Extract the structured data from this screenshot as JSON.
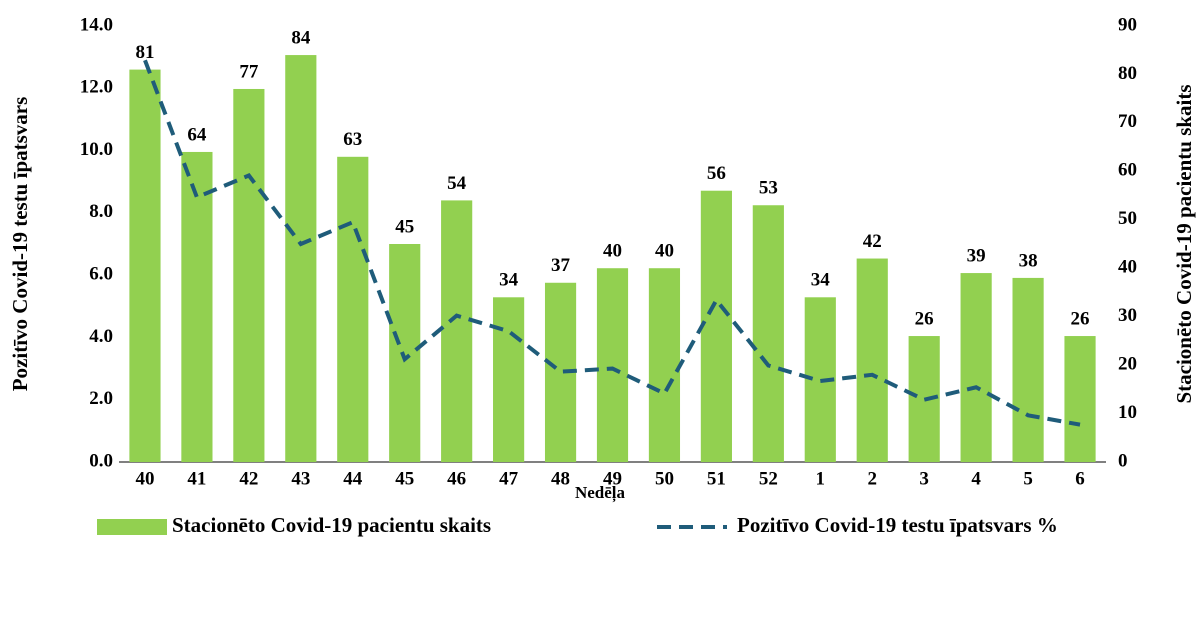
{
  "chart_data": {
    "type": "bar_line",
    "x_label": "Nedēļa",
    "y_label": "Pozitīvo Covid-19 testu īpatsvars",
    "y2_label": "Stacionēto Covid-19 pacientu skaits",
    "categories": [
      "40",
      "41",
      "42",
      "43",
      "44",
      "45",
      "46",
      "47",
      "48",
      "49",
      "50",
      "51",
      "52",
      "1",
      "2",
      "3",
      "4",
      "5",
      "6"
    ],
    "series": [
      {
        "name": "Stacionēto Covid-19 pacientu skaits",
        "type": "bar",
        "axis": "y2",
        "color": "#92d050",
        "values": [
          81,
          64,
          77,
          84,
          63,
          45,
          54,
          34,
          37,
          40,
          40,
          56,
          53,
          34,
          42,
          26,
          39,
          38,
          26
        ]
      },
      {
        "name": "Pozitīvo Covid-19 testu īpatsvars %",
        "type": "line",
        "axis": "y",
        "color": "#1f5c7a",
        "values": [
          12.9,
          8.5,
          9.2,
          7.0,
          7.7,
          3.3,
          4.7,
          4.2,
          2.9,
          3.0,
          2.2,
          5.2,
          3.1,
          2.6,
          2.8,
          2.0,
          2.4,
          1.5,
          1.2
        ]
      }
    ],
    "ylim": [
      0,
      14
    ],
    "yticks": [
      {
        "value": 0,
        "label": "0.0"
      },
      {
        "value": 2,
        "label": "2.0"
      },
      {
        "value": 4,
        "label": "4.0"
      },
      {
        "value": 6,
        "label": "6.0"
      },
      {
        "value": 8,
        "label": "8.0"
      },
      {
        "value": 10,
        "label": "10.0"
      },
      {
        "value": 12,
        "label": "12.0"
      },
      {
        "value": 14,
        "label": "14.0"
      }
    ],
    "y2lim": [
      0,
      90
    ],
    "y2ticks": [
      0,
      10,
      20,
      30,
      40,
      50,
      60,
      70,
      80,
      90
    ],
    "legend": "bottom"
  }
}
